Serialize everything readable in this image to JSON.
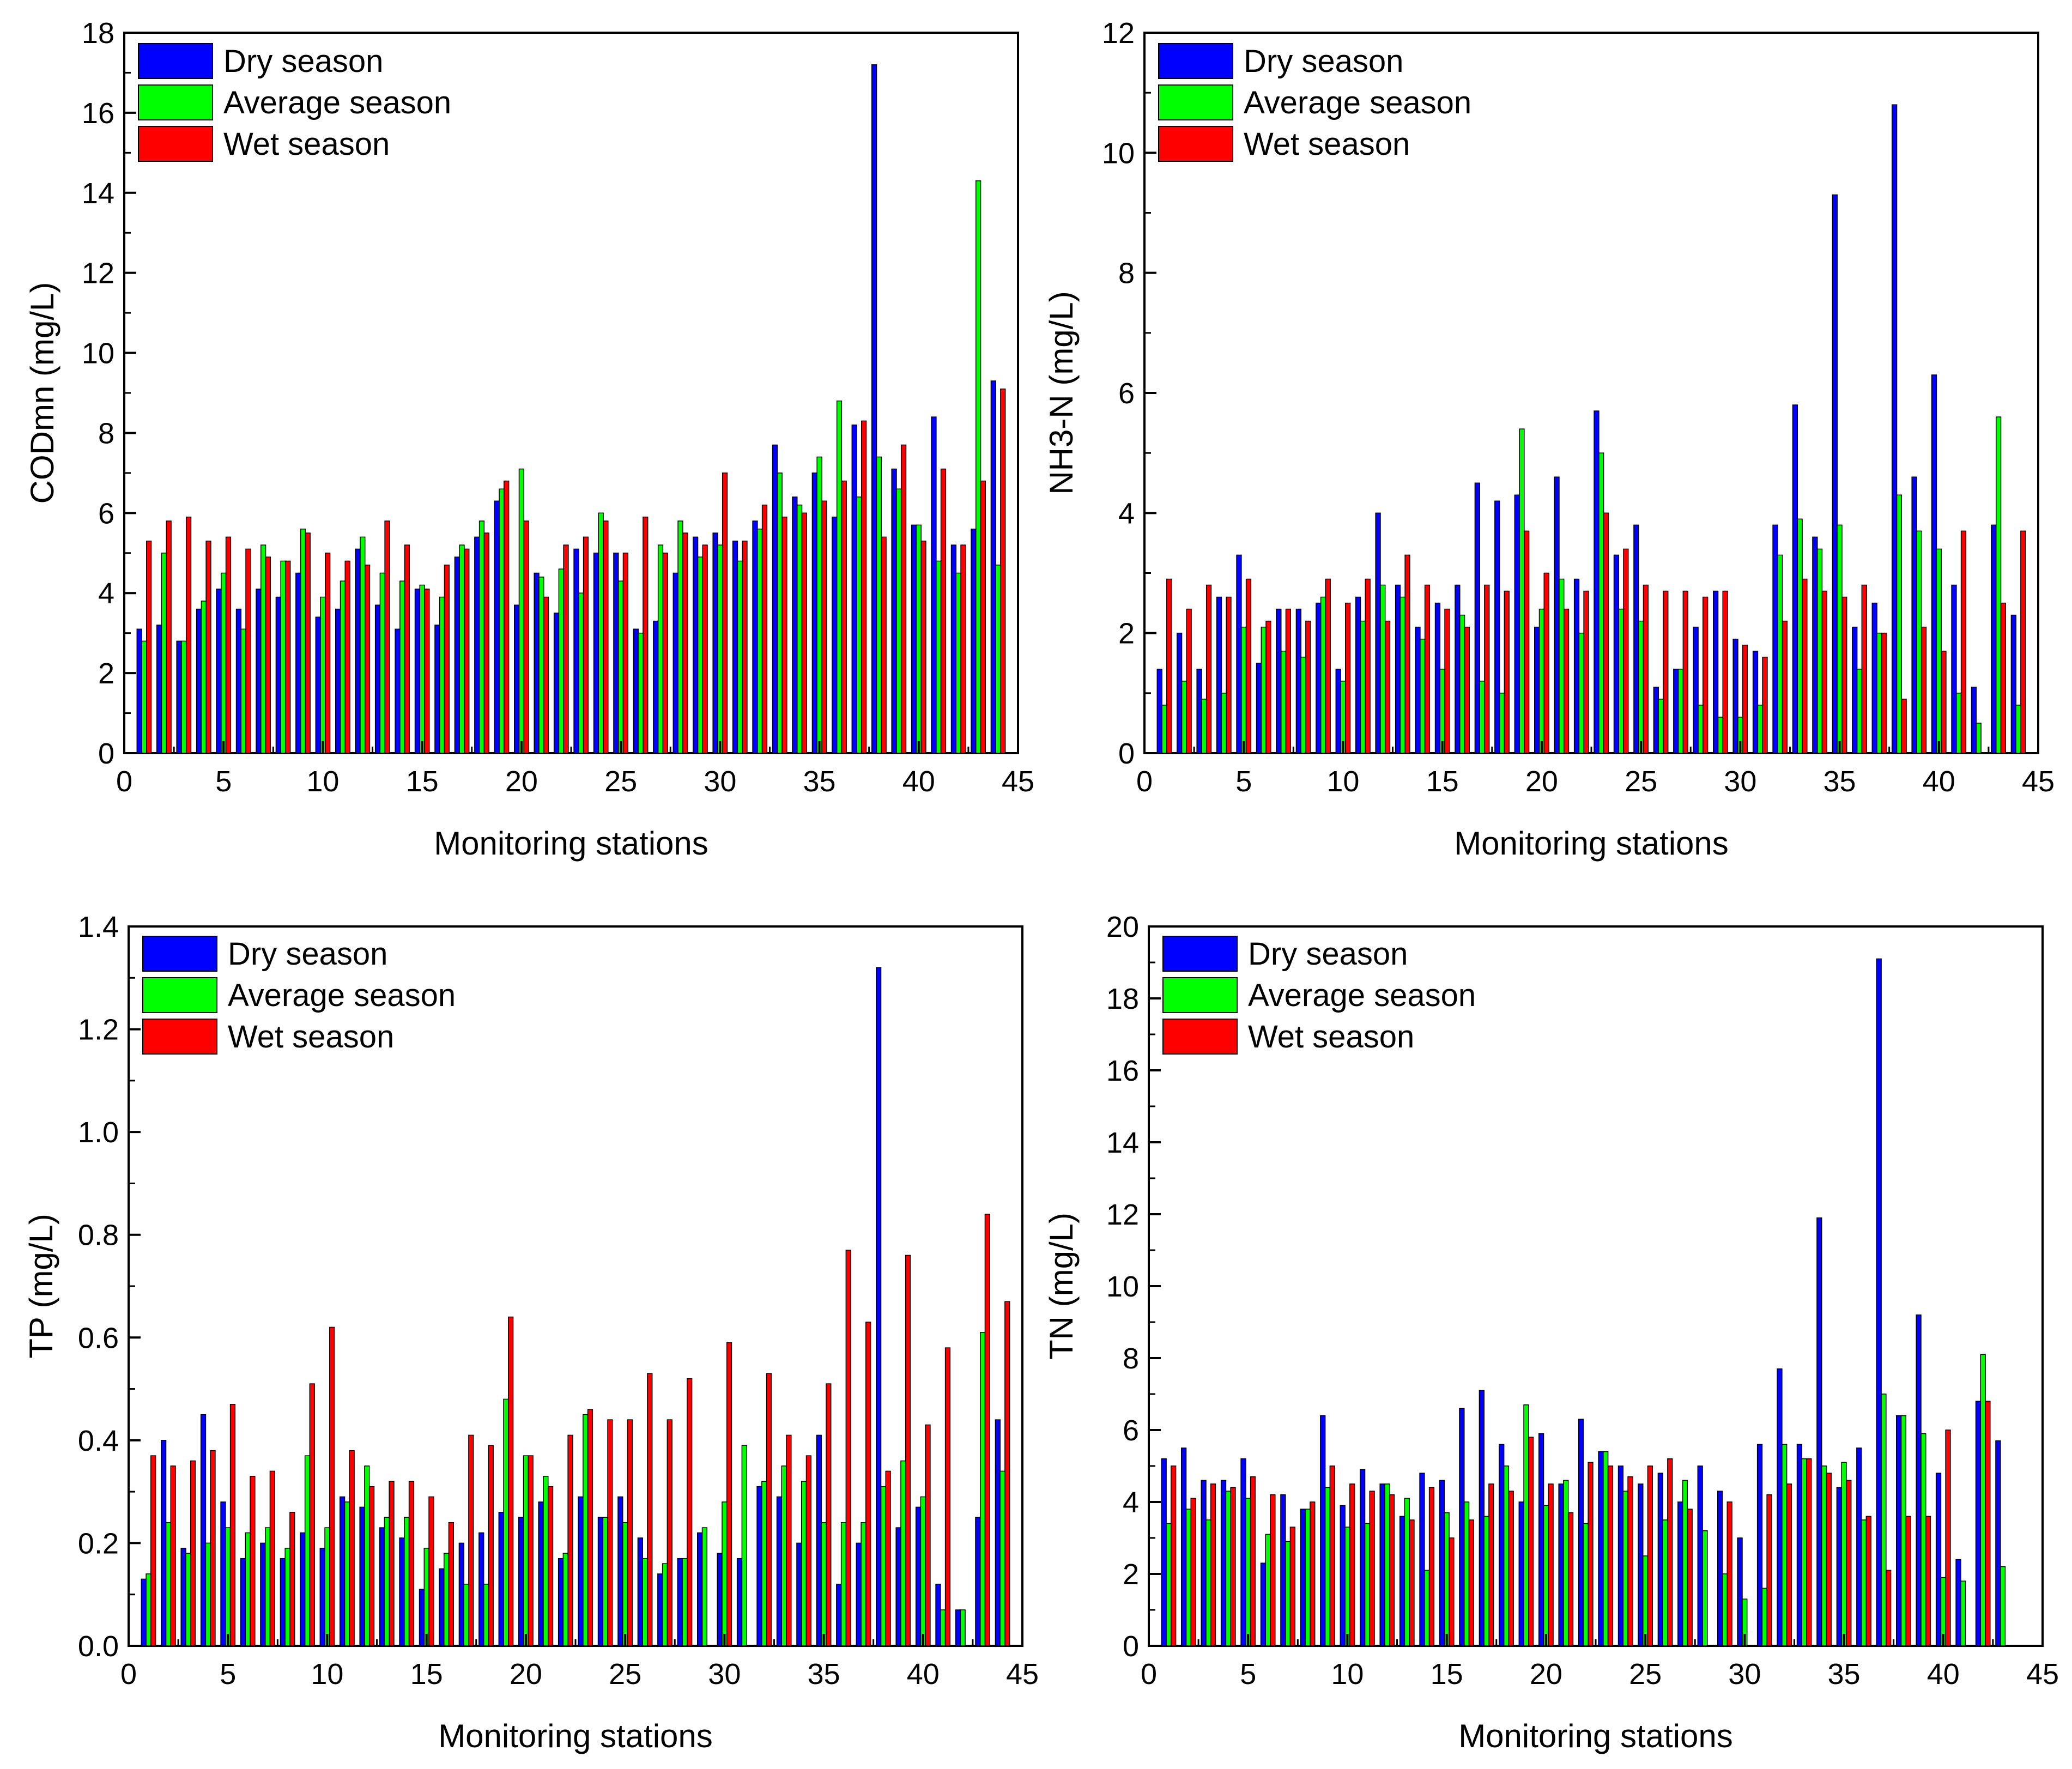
{
  "colors": {
    "dry": "#0000FF",
    "average": "#00FF00",
    "wet": "#FF0000",
    "axis": "#000000"
  },
  "chart_data": [
    {
      "type": "bar",
      "ylabel": "CODmn (mg/L)",
      "xlabel": "Monitoring stations",
      "ylim": [
        0,
        18
      ],
      "xlim": [
        0,
        45
      ],
      "xticks": [
        0,
        5,
        10,
        15,
        20,
        25,
        30,
        35,
        40,
        45
      ],
      "yticks": [
        0,
        2,
        4,
        6,
        8,
        10,
        12,
        14,
        16,
        18
      ],
      "x": [
        1,
        2,
        3,
        4,
        5,
        6,
        7,
        8,
        9,
        10,
        11,
        12,
        13,
        14,
        15,
        16,
        17,
        18,
        19,
        20,
        21,
        22,
        23,
        24,
        25,
        26,
        27,
        28,
        29,
        30,
        31,
        32,
        33,
        34,
        35,
        36,
        37,
        38,
        39,
        40,
        41,
        42,
        43,
        44
      ],
      "series": [
        {
          "name": "Dry season",
          "color_key": "dry",
          "values": [
            3.1,
            3.2,
            2.8,
            3.6,
            4.1,
            3.6,
            4.1,
            3.9,
            4.5,
            3.4,
            3.6,
            5.1,
            3.7,
            3.1,
            4.1,
            3.2,
            4.9,
            5.4,
            6.3,
            3.7,
            4.5,
            3.5,
            5.1,
            5.0,
            5.0,
            3.1,
            3.3,
            4.5,
            5.4,
            5.5,
            5.3,
            5.8,
            7.7,
            6.4,
            7.0,
            5.9,
            8.2,
            17.2,
            7.1,
            5.7,
            8.4,
            5.2,
            5.6,
            9.3
          ]
        },
        {
          "name": "Average season",
          "color_key": "average",
          "values": [
            2.8,
            5.0,
            2.8,
            3.8,
            4.5,
            3.1,
            5.2,
            4.8,
            5.6,
            3.9,
            4.3,
            5.4,
            4.5,
            4.3,
            4.2,
            3.9,
            5.2,
            5.8,
            6.6,
            7.1,
            4.4,
            4.6,
            4.0,
            6.0,
            4.3,
            3.0,
            5.2,
            5.8,
            4.9,
            5.2,
            4.8,
            5.6,
            7.0,
            6.2,
            7.4,
            8.8,
            6.4,
            7.4,
            6.6,
            5.7,
            4.8,
            4.5,
            14.3,
            4.7
          ]
        },
        {
          "name": "Wet season",
          "color_key": "wet",
          "values": [
            5.3,
            5.8,
            5.9,
            5.3,
            5.4,
            5.1,
            4.9,
            4.8,
            5.5,
            5.0,
            4.8,
            4.7,
            5.8,
            5.2,
            4.1,
            4.7,
            5.1,
            5.5,
            6.8,
            5.8,
            3.9,
            5.2,
            5.4,
            5.8,
            5.0,
            5.9,
            5.0,
            5.5,
            5.2,
            7.0,
            5.3,
            6.2,
            5.9,
            6.0,
            6.3,
            6.8,
            8.3,
            5.4,
            7.7,
            5.3,
            7.1,
            5.2,
            6.8,
            9.1
          ]
        }
      ],
      "legend": [
        "Dry season",
        "Average season",
        "Wet season"
      ],
      "legend_position": "top-left"
    },
    {
      "type": "bar",
      "ylabel": "NH3-N (mg/L)",
      "xlabel": "Monitoring stations",
      "ylim": [
        0,
        12
      ],
      "xlim": [
        0,
        45
      ],
      "xticks": [
        0,
        5,
        10,
        15,
        20,
        25,
        30,
        35,
        40,
        45
      ],
      "yticks": [
        0,
        2,
        4,
        6,
        8,
        10,
        12
      ],
      "x": [
        1,
        2,
        3,
        4,
        5,
        6,
        7,
        8,
        9,
        10,
        11,
        12,
        13,
        14,
        15,
        16,
        17,
        18,
        19,
        20,
        21,
        22,
        23,
        24,
        25,
        26,
        27,
        28,
        29,
        30,
        31,
        32,
        33,
        34,
        35,
        36,
        37,
        38,
        39,
        40,
        41,
        42,
        43,
        44
      ],
      "series": [
        {
          "name": "Dry season",
          "color_key": "dry",
          "values": [
            1.4,
            2.0,
            1.4,
            2.6,
            3.3,
            1.5,
            2.4,
            2.4,
            2.5,
            1.4,
            2.6,
            4.0,
            2.8,
            2.1,
            2.5,
            2.8,
            4.5,
            4.2,
            4.3,
            2.1,
            4.6,
            2.9,
            5.7,
            3.3,
            3.8,
            1.1,
            1.4,
            2.1,
            2.7,
            1.9,
            1.7,
            3.8,
            5.8,
            3.6,
            9.3,
            2.1,
            2.5,
            10.8,
            4.6,
            6.3,
            2.8,
            1.1,
            3.8,
            2.3
          ]
        },
        {
          "name": "Average season",
          "color_key": "average",
          "values": [
            0.8,
            1.2,
            0.9,
            1.0,
            2.1,
            2.1,
            1.7,
            1.6,
            2.6,
            1.2,
            2.2,
            2.8,
            2.6,
            1.9,
            1.4,
            2.3,
            1.2,
            1.0,
            5.4,
            2.4,
            2.9,
            2.0,
            5.0,
            2.4,
            2.2,
            0.9,
            1.4,
            0.8,
            0.6,
            0.6,
            0.8,
            3.3,
            3.9,
            3.4,
            3.8,
            1.4,
            2.0,
            4.3,
            3.7,
            3.4,
            1.0,
            0.5,
            5.6,
            0.8
          ]
        },
        {
          "name": "Wet season",
          "color_key": "wet",
          "values": [
            2.9,
            2.4,
            2.8,
            2.6,
            2.9,
            2.2,
            2.4,
            2.2,
            2.9,
            2.5,
            2.9,
            2.2,
            3.3,
            2.8,
            2.4,
            2.1,
            2.8,
            2.7,
            3.7,
            3.0,
            2.4,
            2.7,
            4.0,
            3.4,
            2.8,
            2.7,
            2.7,
            2.6,
            2.7,
            1.8,
            1.6,
            2.2,
            2.9,
            2.7,
            2.6,
            2.8,
            2.0,
            0.9,
            2.1,
            1.7,
            3.7,
            0.0,
            2.5,
            3.7
          ]
        }
      ],
      "legend": [
        "Dry season",
        "Average season",
        "Wet season"
      ],
      "legend_position": "top-left"
    },
    {
      "type": "bar",
      "ylabel": "TP (mg/L)",
      "xlabel": "Monitoring stations",
      "ylim": [
        0,
        1.4
      ],
      "xlim": [
        0,
        45
      ],
      "xticks": [
        0,
        5,
        10,
        15,
        20,
        25,
        30,
        35,
        40,
        45
      ],
      "yticks": [
        "0.0",
        "0.2",
        "0.4",
        "0.6",
        "0.8",
        "1.0",
        "1.2",
        "1.4"
      ],
      "x": [
        1,
        2,
        3,
        4,
        5,
        6,
        7,
        8,
        9,
        10,
        11,
        12,
        13,
        14,
        15,
        16,
        17,
        18,
        19,
        20,
        21,
        22,
        23,
        24,
        25,
        26,
        27,
        28,
        29,
        30,
        31,
        32,
        33,
        34,
        35,
        36,
        37,
        38,
        39,
        40,
        41,
        42,
        43,
        44
      ],
      "series": [
        {
          "name": "Dry season",
          "color_key": "dry",
          "values": [
            0.13,
            0.4,
            0.19,
            0.45,
            0.28,
            0.17,
            0.2,
            0.17,
            0.22,
            0.19,
            0.29,
            0.27,
            0.23,
            0.21,
            0.11,
            0.15,
            0.2,
            0.22,
            0.26,
            0.25,
            0.28,
            0.17,
            0.29,
            0.25,
            0.29,
            0.21,
            0.14,
            0.17,
            0.22,
            0.18,
            0.17,
            0.31,
            0.29,
            0.2,
            0.41,
            0.12,
            0.2,
            1.32,
            0.23,
            0.27,
            0.12,
            0.07,
            0.25,
            0.44
          ]
        },
        {
          "name": "Average season",
          "color_key": "average",
          "values": [
            0.14,
            0.24,
            0.18,
            0.2,
            0.23,
            0.22,
            0.23,
            0.19,
            0.37,
            0.23,
            0.28,
            0.35,
            0.25,
            0.25,
            0.19,
            0.18,
            0.12,
            0.12,
            0.48,
            0.37,
            0.33,
            0.18,
            0.45,
            0.25,
            0.24,
            0.17,
            0.16,
            0.17,
            0.23,
            0.28,
            0.39,
            0.32,
            0.35,
            0.32,
            0.24,
            0.24,
            0.24,
            0.31,
            0.36,
            0.29,
            0.07,
            0.07,
            0.61,
            0.34
          ]
        },
        {
          "name": "Wet season",
          "color_key": "wet",
          "values": [
            0.37,
            0.35,
            0.36,
            0.38,
            0.47,
            0.33,
            0.34,
            0.26,
            0.51,
            0.62,
            0.38,
            0.31,
            0.32,
            0.32,
            0.29,
            0.24,
            0.41,
            0.39,
            0.64,
            0.37,
            0.31,
            0.41,
            0.46,
            0.44,
            0.44,
            0.53,
            0.44,
            0.52,
            0.0,
            0.59,
            0.0,
            0.53,
            0.41,
            0.37,
            0.51,
            0.77,
            0.63,
            0.34,
            0.76,
            0.43,
            0.58,
            0.0,
            0.84,
            0.67
          ]
        }
      ],
      "legend": [
        "Dry season",
        "Average season",
        "Wet season"
      ],
      "legend_position": "top-left"
    },
    {
      "type": "bar",
      "ylabel": "TN (mg/L)",
      "xlabel": "Monitoring stations",
      "ylim": [
        0,
        20
      ],
      "xlim": [
        0,
        45
      ],
      "xticks": [
        0,
        5,
        10,
        15,
        20,
        25,
        30,
        35,
        40,
        45
      ],
      "yticks": [
        0,
        2,
        4,
        6,
        8,
        10,
        12,
        14,
        16,
        18,
        20
      ],
      "x": [
        1,
        2,
        3,
        4,
        5,
        6,
        7,
        8,
        9,
        10,
        11,
        12,
        13,
        14,
        15,
        16,
        17,
        18,
        19,
        20,
        21,
        22,
        23,
        24,
        25,
        26,
        27,
        28,
        29,
        30,
        31,
        32,
        33,
        34,
        35,
        36,
        37,
        38,
        39,
        40,
        41,
        42,
        43,
        44
      ],
      "series": [
        {
          "name": "Dry season",
          "color_key": "dry",
          "values": [
            5.2,
            5.5,
            4.6,
            4.6,
            5.2,
            2.3,
            4.2,
            3.8,
            6.4,
            3.9,
            4.9,
            4.5,
            3.6,
            4.8,
            4.6,
            6.6,
            7.1,
            5.6,
            4.0,
            5.9,
            4.5,
            6.3,
            5.4,
            5.0,
            4.5,
            4.8,
            4.0,
            5.0,
            4.3,
            3.0,
            5.6,
            7.7,
            5.6,
            11.9,
            4.4,
            5.5,
            19.1,
            6.4,
            9.2,
            4.8,
            2.4,
            6.8,
            5.7,
            0.0
          ]
        },
        {
          "name": "Average season",
          "color_key": "average",
          "values": [
            3.4,
            3.8,
            3.5,
            4.3,
            4.1,
            3.1,
            2.9,
            3.8,
            4.4,
            3.3,
            3.4,
            4.5,
            4.1,
            2.1,
            3.7,
            4.0,
            3.6,
            5.0,
            6.7,
            3.9,
            4.6,
            3.4,
            5.4,
            4.3,
            2.5,
            3.5,
            4.6,
            3.2,
            2.0,
            1.3,
            1.6,
            5.6,
            5.2,
            5.0,
            5.1,
            3.5,
            7.0,
            6.4,
            5.9,
            1.9,
            1.8,
            8.1,
            2.2,
            0.0
          ]
        },
        {
          "name": "Wet season",
          "color_key": "wet",
          "values": [
            5.0,
            4.1,
            4.5,
            4.4,
            4.7,
            4.2,
            3.3,
            4.0,
            5.0,
            4.5,
            4.3,
            4.2,
            3.5,
            4.4,
            3.0,
            3.5,
            4.5,
            4.3,
            5.8,
            4.5,
            3.7,
            5.1,
            5.0,
            4.7,
            5.0,
            5.2,
            3.8,
            0.0,
            4.0,
            0.0,
            4.2,
            4.5,
            5.2,
            4.8,
            4.6,
            3.6,
            2.1,
            3.6,
            3.6,
            6.0,
            0.0,
            6.8,
            0.0,
            0.0
          ]
        }
      ],
      "legend": [
        "Dry season",
        "Average season",
        "Wet season"
      ],
      "legend_position": "top-left"
    }
  ]
}
